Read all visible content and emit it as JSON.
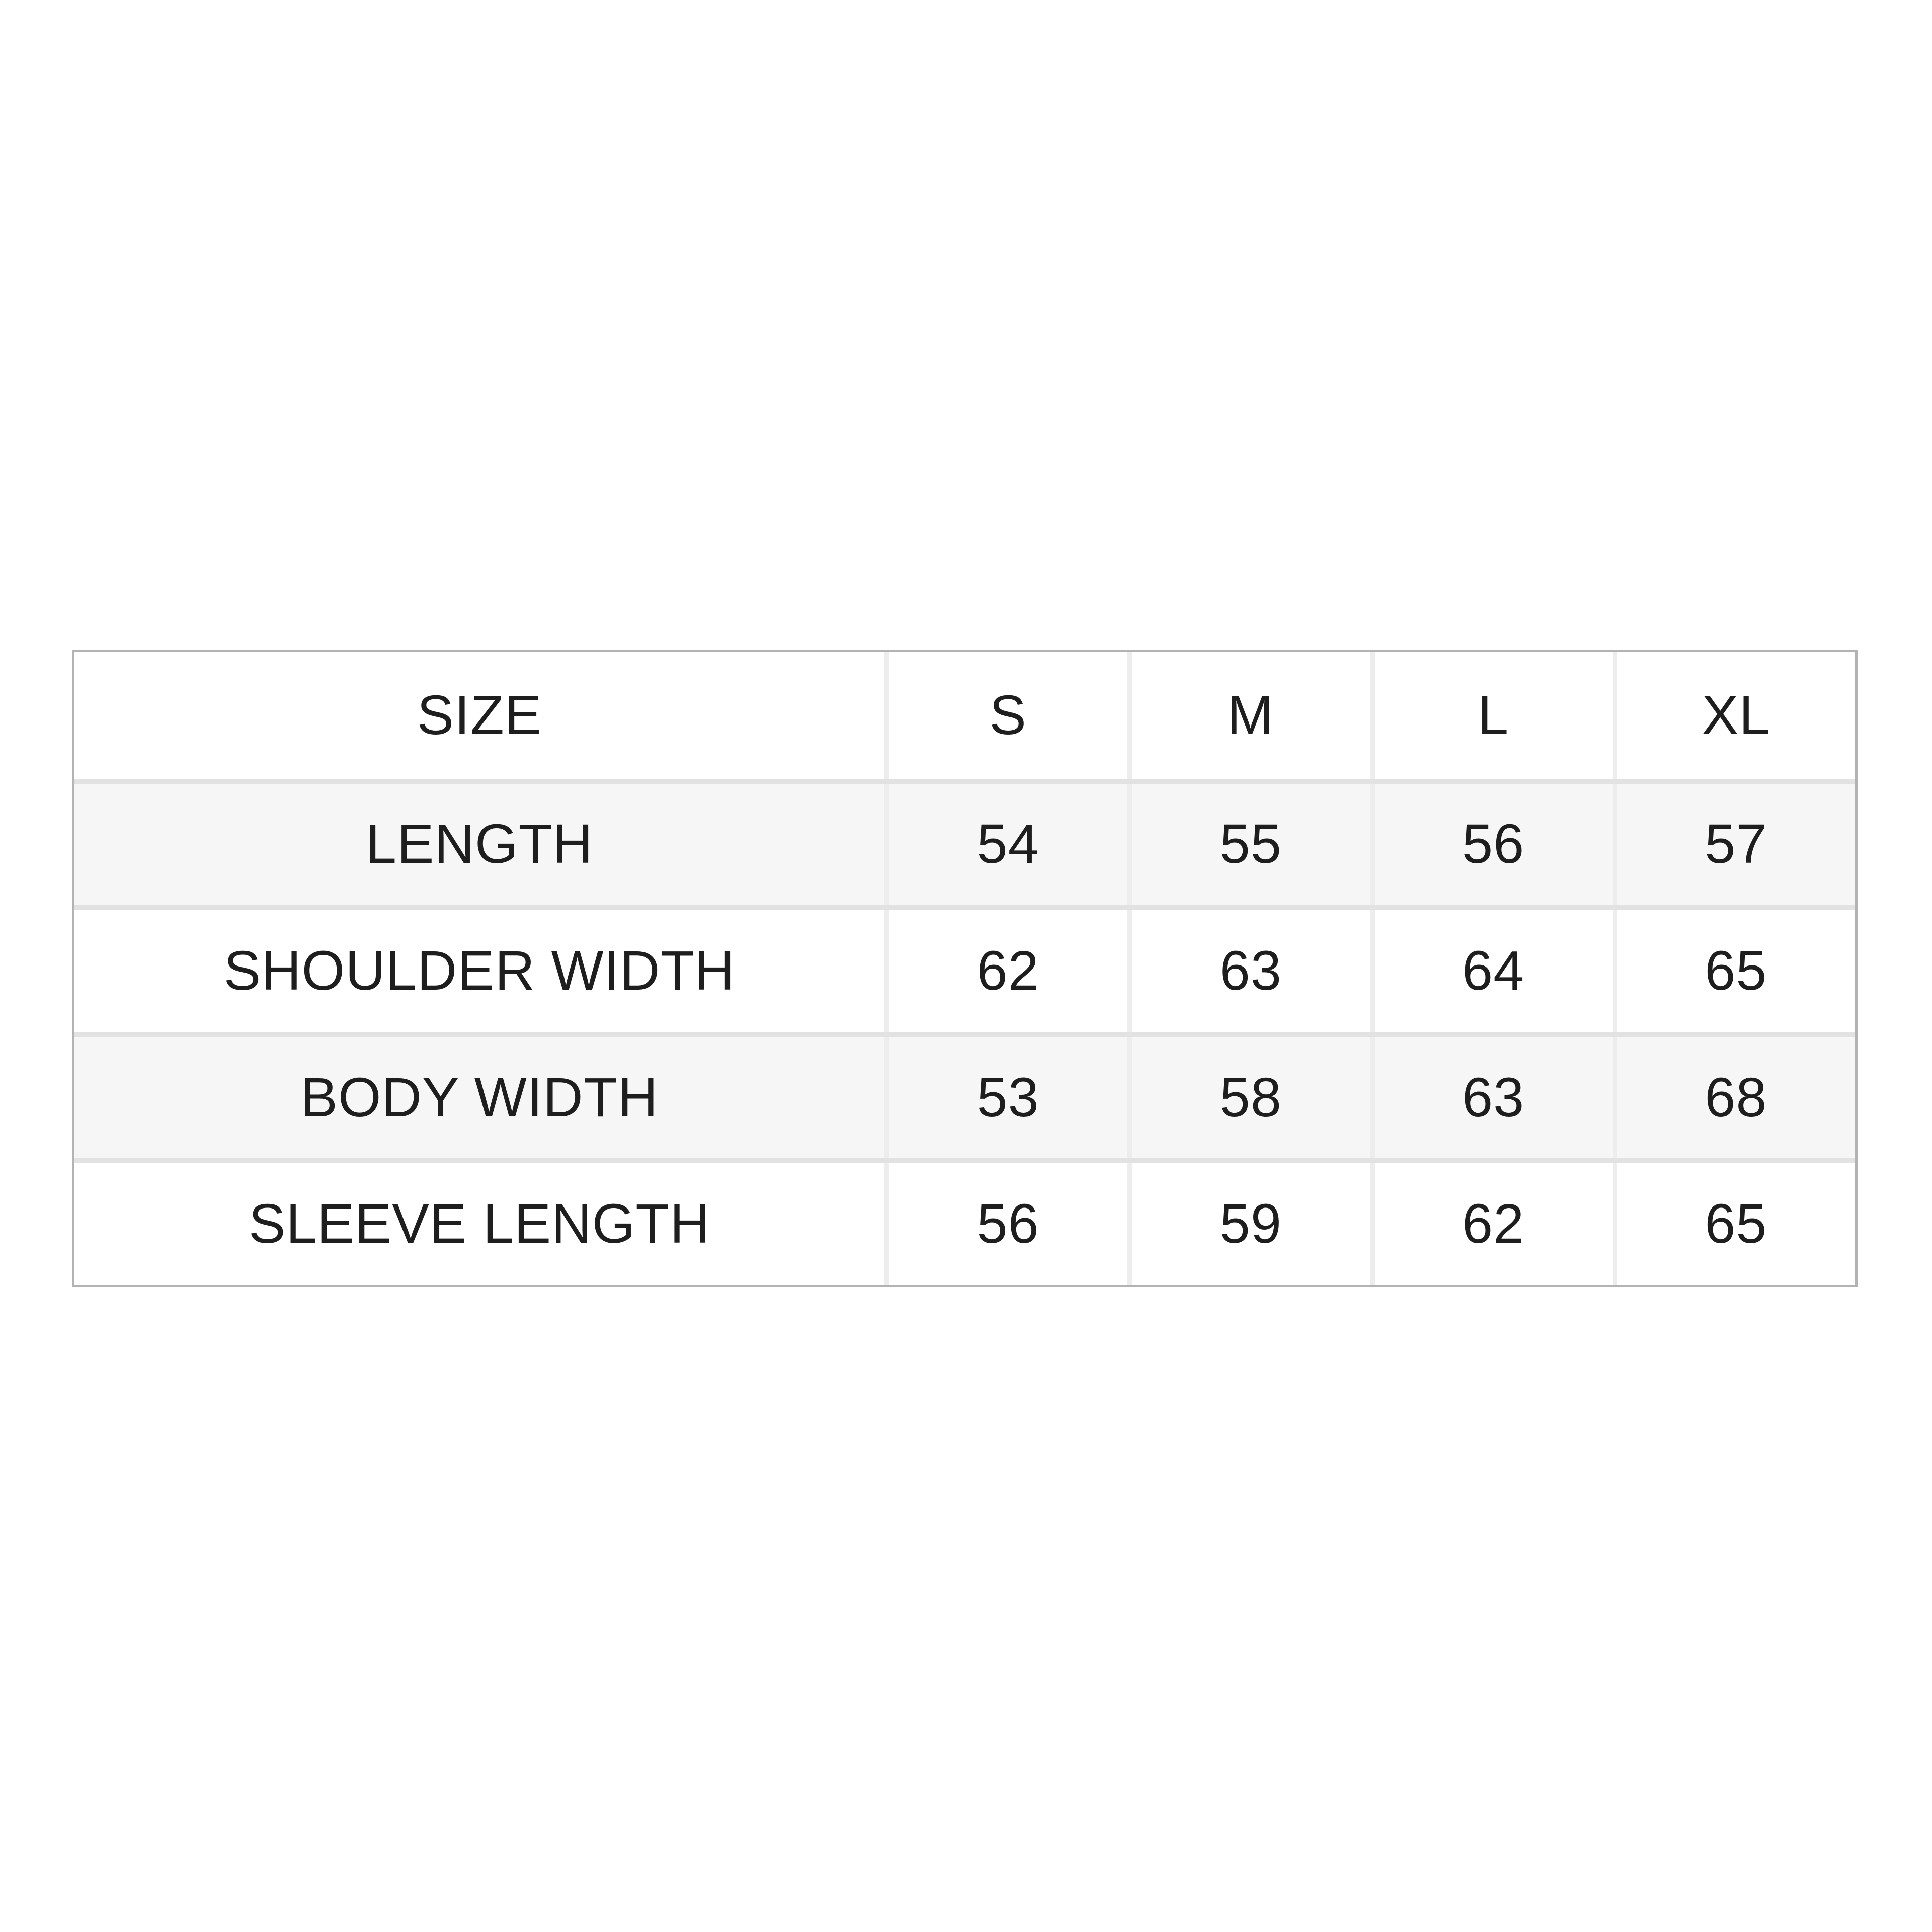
{
  "page": {
    "background_color": "#ffffff"
  },
  "style": {
    "stripe_color": "#f6f6f6",
    "outer_border_color": "#b3b3b3",
    "horizontal_grid_color": "#e2e2e2",
    "vertical_grid_color": "#ededed",
    "text_color": "#1e1e1e"
  },
  "chart_data": {
    "type": "table",
    "title": "",
    "columns": [
      "SIZE",
      "S",
      "M",
      "L",
      "XL"
    ],
    "rows": [
      {
        "label": "LENGTH",
        "values": [
          "54",
          "55",
          "56",
          "57"
        ]
      },
      {
        "label": "SHOULDER WIDTH",
        "values": [
          "62",
          "63",
          "64",
          "65"
        ]
      },
      {
        "label": "BODY WIDTH",
        "values": [
          "53",
          "58",
          "63",
          "68"
        ]
      },
      {
        "label": "SLEEVE LENGTH",
        "values": [
          "56",
          "59",
          "62",
          "65"
        ]
      }
    ],
    "layout": {
      "grid": "on",
      "header_row": true,
      "zebra_striping": true,
      "cell_alignment": "center"
    }
  }
}
